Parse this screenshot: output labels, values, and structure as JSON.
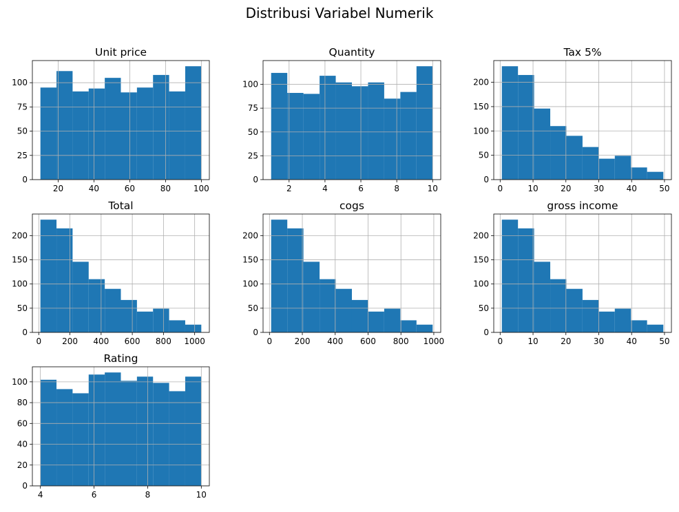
{
  "suptitle": "Distribusi Variabel Numerik",
  "bar_color": "#1f77b4",
  "chart_data": [
    {
      "type": "bar",
      "title": "Unit price",
      "bin_edges": [
        10.08,
        19.07,
        28.06,
        37.05,
        46.04,
        55.03,
        64.02,
        73.01,
        82.0,
        90.99,
        99.98
      ],
      "counts": [
        95,
        112,
        91,
        94,
        105,
        90,
        95,
        108,
        91,
        117
      ],
      "xlim": [
        5.58,
        104.48
      ],
      "ylim": [
        0,
        122.85
      ],
      "xticks": [
        20,
        40,
        60,
        80,
        100
      ],
      "yticks": [
        0,
        25,
        50,
        75,
        100
      ],
      "grid": true
    },
    {
      "type": "bar",
      "title": "Quantity",
      "bin_edges": [
        1,
        1.9,
        2.8,
        3.7,
        4.6,
        5.5,
        6.4,
        7.3,
        8.2,
        9.1,
        10
      ],
      "counts": [
        112,
        91,
        90,
        109,
        102,
        98,
        102,
        85,
        92,
        119
      ],
      "xlim": [
        0.55,
        10.45
      ],
      "ylim": [
        0,
        124.95
      ],
      "xticks": [
        2,
        4,
        6,
        8,
        10
      ],
      "yticks": [
        0,
        25,
        50,
        75,
        100
      ],
      "grid": true
    },
    {
      "type": "bar",
      "title": "Tax 5%",
      "bin_edges": [
        0.51,
        5.42,
        10.33,
        15.24,
        20.15,
        25.06,
        29.97,
        34.88,
        39.79,
        44.7,
        49.65
      ],
      "counts": [
        233,
        215,
        146,
        110,
        90,
        67,
        43,
        49,
        25,
        16
      ],
      "xlim": [
        -1.95,
        52.11
      ],
      "ylim": [
        0,
        244.65
      ],
      "xticks": [
        0,
        10,
        20,
        30,
        40,
        50
      ],
      "yticks": [
        0,
        50,
        100,
        150,
        200
      ],
      "grid": true
    },
    {
      "type": "bar",
      "title": "Total",
      "bin_edges": [
        10.68,
        113.88,
        217.08,
        320.28,
        423.48,
        526.68,
        629.88,
        733.08,
        836.28,
        939.48,
        1042.65
      ],
      "counts": [
        233,
        215,
        146,
        110,
        90,
        67,
        43,
        49,
        25,
        16
      ],
      "xlim": [
        -40.92,
        1094.25
      ],
      "ylim": [
        0,
        244.65
      ],
      "xticks": [
        0,
        200,
        400,
        600,
        800,
        1000
      ],
      "yticks": [
        0,
        50,
        100,
        150,
        200
      ],
      "grid": true
    },
    {
      "type": "bar",
      "title": "cogs",
      "bin_edges": [
        10.17,
        108.45,
        206.73,
        305.01,
        403.29,
        501.57,
        599.85,
        698.13,
        796.41,
        894.69,
        993.0
      ],
      "counts": [
        233,
        215,
        146,
        110,
        90,
        67,
        43,
        49,
        25,
        16
      ],
      "xlim": [
        -38.97,
        1042.14
      ],
      "ylim": [
        0,
        244.65
      ],
      "xticks": [
        0,
        200,
        400,
        600,
        800,
        1000
      ],
      "yticks": [
        0,
        50,
        100,
        150,
        200
      ],
      "grid": true
    },
    {
      "type": "bar",
      "title": "gross income",
      "bin_edges": [
        0.51,
        5.42,
        10.33,
        15.24,
        20.15,
        25.06,
        29.97,
        34.88,
        39.79,
        44.7,
        49.65
      ],
      "counts": [
        233,
        215,
        146,
        110,
        90,
        67,
        43,
        49,
        25,
        16
      ],
      "xlim": [
        -1.95,
        52.11
      ],
      "ylim": [
        0,
        244.65
      ],
      "xticks": [
        0,
        10,
        20,
        30,
        40,
        50
      ],
      "yticks": [
        0,
        50,
        100,
        150,
        200
      ],
      "grid": true
    },
    {
      "type": "bar",
      "title": "Rating",
      "bin_edges": [
        4,
        4.6,
        5.2,
        5.8,
        6.4,
        7.0,
        7.6,
        8.2,
        8.8,
        9.4,
        10
      ],
      "counts": [
        102,
        93,
        89,
        107,
        109,
        101,
        105,
        99,
        91,
        105
      ],
      "xlim": [
        3.7,
        10.3
      ],
      "ylim": [
        0,
        114.45
      ],
      "xticks": [
        4,
        6,
        8,
        10
      ],
      "yticks": [
        0,
        20,
        40,
        60,
        80,
        100
      ],
      "grid": true
    }
  ]
}
